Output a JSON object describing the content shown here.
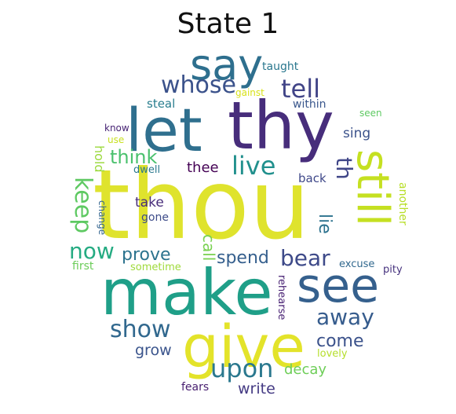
{
  "title": "State 1",
  "words": [
    {
      "text": "thou",
      "color": "#dfe32d"
    },
    {
      "text": "make",
      "color": "#1f9f88"
    },
    {
      "text": "give",
      "color": "#e3e32a"
    },
    {
      "text": "let",
      "color": "#2f6f8e"
    },
    {
      "text": "thy",
      "color": "#472d7b"
    },
    {
      "text": "say",
      "color": "#2e6f8e"
    },
    {
      "text": "see",
      "color": "#35608d"
    },
    {
      "text": "still",
      "color": "#c5e021"
    },
    {
      "text": "whose",
      "color": "#3b528b"
    },
    {
      "text": "tell",
      "color": "#414487"
    },
    {
      "text": "live",
      "color": "#21908d"
    },
    {
      "text": "keep",
      "color": "#5ec962"
    },
    {
      "text": "now",
      "color": "#25ab82"
    },
    {
      "text": "upon",
      "color": "#2a788e"
    },
    {
      "text": "show",
      "color": "#31688e"
    },
    {
      "text": "away",
      "color": "#365c8d"
    },
    {
      "text": "bear",
      "color": "#3e4a89"
    },
    {
      "text": "prove",
      "color": "#2c738e"
    },
    {
      "text": "spend",
      "color": "#355f8d"
    },
    {
      "text": "th",
      "color": "#404688"
    },
    {
      "text": "think",
      "color": "#4ac16d"
    },
    {
      "text": "thee",
      "color": "#440154"
    },
    {
      "text": "call",
      "color": "#7ad151"
    },
    {
      "text": "lie",
      "color": "#2c728e"
    },
    {
      "text": "come",
      "color": "#3b528b"
    },
    {
      "text": "grow",
      "color": "#3a548c"
    },
    {
      "text": "decay",
      "color": "#6ece58"
    },
    {
      "text": "write",
      "color": "#443a83"
    },
    {
      "text": "fears",
      "color": "#481f70"
    },
    {
      "text": "lovely",
      "color": "#b5de2b"
    },
    {
      "text": "excuse",
      "color": "#31688e"
    },
    {
      "text": "pity",
      "color": "#46327e"
    },
    {
      "text": "rehearse",
      "color": "#482173"
    },
    {
      "text": "sometime",
      "color": "#9fda3a"
    },
    {
      "text": "first",
      "color": "#6ccd5a"
    },
    {
      "text": "change",
      "color": "#32648e"
    },
    {
      "text": "gone",
      "color": "#3e4c8a"
    },
    {
      "text": "take",
      "color": "#472c7a"
    },
    {
      "text": "hold",
      "color": "#9bd93c"
    },
    {
      "text": "dwell",
      "color": "#2a788e"
    },
    {
      "text": "use",
      "color": "#c8e020"
    },
    {
      "text": "know",
      "color": "#482475"
    },
    {
      "text": "steal",
      "color": "#287d8e"
    },
    {
      "text": "taught",
      "color": "#2a778e"
    },
    {
      "text": "gainst",
      "color": "#d8e219"
    },
    {
      "text": "within",
      "color": "#39568c"
    },
    {
      "text": "seen",
      "color": "#5ec962"
    },
    {
      "text": "sing",
      "color": "#3b528b"
    },
    {
      "text": "back",
      "color": "#3f4889"
    },
    {
      "text": "another",
      "color": "#b8de29"
    }
  ]
}
